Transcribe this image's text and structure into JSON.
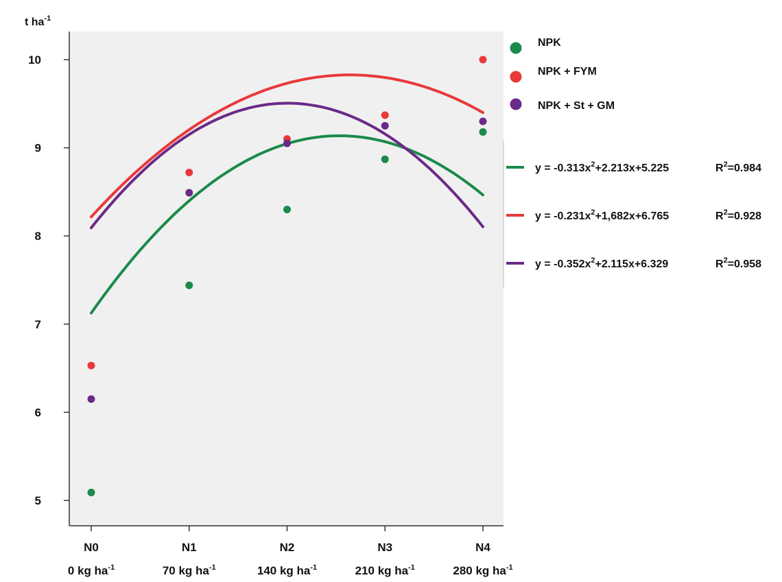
{
  "chart_data": {
    "type": "scatter",
    "title": "",
    "ylabel_unit": "t ha",
    "ylabel_sup": "-1",
    "ylim": [
      4.75,
      10.6
    ],
    "yticks": [
      5,
      6,
      7,
      8,
      9,
      10
    ],
    "x": [
      0,
      1,
      2,
      3,
      4
    ],
    "categories": [
      "N0",
      "N1",
      "N2",
      "N3",
      "N4"
    ],
    "category_sublabels": [
      "0 kg ha",
      "70 kg ha",
      "140 kg ha",
      "210 kg ha",
      "280 kg ha"
    ],
    "category_sublabel_sup": "-1",
    "grid": false,
    "legend_position": "right",
    "series": [
      {
        "name": "NPK",
        "color": "#1a8a4a",
        "values": [
          5.09,
          7.44,
          8.3,
          8.87,
          9.18
        ],
        "fit": {
          "a": -0.313,
          "b": 2.213,
          "c": 5.225
        },
        "equation_parts": [
          "y = -0.313x",
          "2",
          "+2.213x+5.225"
        ],
        "r2_parts": [
          "R",
          "2",
          "=0.984"
        ]
      },
      {
        "name": "NPK + FYM",
        "color": "#e8393b",
        "values": [
          6.53,
          8.72,
          9.1,
          9.37,
          10.0
        ],
        "fit": {
          "a": -0.231,
          "b": 1.682,
          "c": 6.765
        },
        "equation_parts": [
          "y = -0.231x",
          "2",
          "+1,682x+6.765"
        ],
        "r2_parts": [
          "R",
          "2",
          "=0.928"
        ]
      },
      {
        "name": "NPK + St + GM",
        "color": "#6a2a87",
        "values": [
          6.15,
          8.49,
          9.05,
          9.25,
          9.3
        ],
        "fit": {
          "a": -0.352,
          "b": 2.115,
          "c": 6.329
        },
        "equation_parts": [
          "y = -0.352x",
          "2",
          "+2.115x+6.329"
        ],
        "r2_parts": [
          "R",
          "2",
          "=0.958"
        ]
      }
    ]
  }
}
